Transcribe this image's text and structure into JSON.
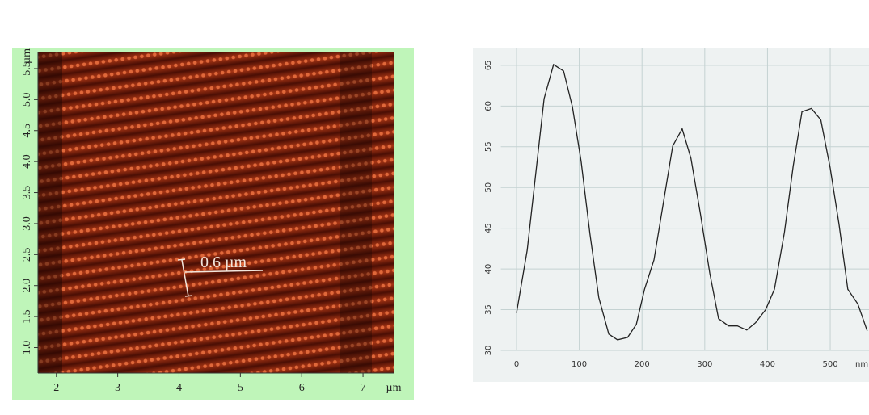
{
  "chart_data": [
    {
      "type": "image",
      "annotation": "0.6 µm",
      "x_label": "µm",
      "y_label": "µm",
      "xlim": [
        1.7,
        7.5
      ],
      "xticks": [
        2,
        3,
        4,
        5,
        6,
        7
      ],
      "ylim": [
        0.59,
        5.76
      ],
      "yticks": [
        {
          "value": 1,
          "label": "1.0"
        },
        1.5,
        {
          "value": 2,
          "label": "2.0"
        },
        2.5,
        {
          "value": 3,
          "label": "3.0"
        },
        3.5,
        {
          "value": 4,
          "label": "4.0"
        },
        4.5,
        {
          "value": 5,
          "label": "5.0"
        },
        5.5
      ]
    },
    {
      "type": "line",
      "x_label": "nm",
      "xlim": [
        -25,
        560
      ],
      "xticks": [
        0,
        100,
        200,
        300,
        400,
        500
      ],
      "ylim": [
        30,
        67
      ],
      "yticks": [
        30,
        35,
        40,
        45,
        50,
        55,
        60,
        65
      ],
      "grid": true,
      "color": "#222222",
      "x": [
        0,
        17,
        44,
        59,
        75,
        89,
        103,
        117,
        131,
        147,
        161,
        177,
        191,
        204,
        219,
        249,
        264,
        278,
        293,
        308,
        322,
        338,
        352,
        367,
        381,
        397,
        411,
        427,
        441,
        455,
        470,
        485,
        500,
        514,
        528,
        544,
        559
      ],
      "values": [
        34.6,
        42.3,
        60.9,
        65.1,
        64.3,
        59.9,
        53.2,
        44.3,
        36.5,
        32,
        31.3,
        31.6,
        33.2,
        37.5,
        41.1,
        55.1,
        57.2,
        53.6,
        46.8,
        39.5,
        33.9,
        33,
        33,
        32.5,
        33.4,
        35,
        37.5,
        44.5,
        52.6,
        59.3,
        59.7,
        58.3,
        52.4,
        45.5,
        37.5,
        35.7,
        32.4
      ]
    }
  ]
}
